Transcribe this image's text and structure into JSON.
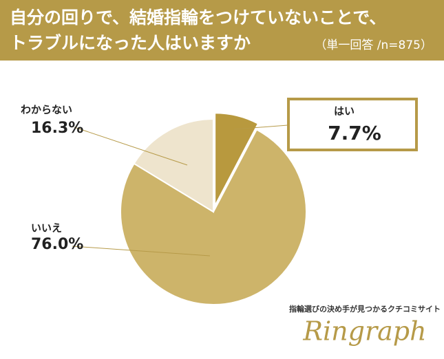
{
  "chart_data": {
    "type": "pie",
    "title": [
      "自分の回りで、結婚指輪をつけていないことで、",
      "トラブルになった人はいますか"
    ],
    "subtitle": "（単一回答 /n=875）",
    "categories": [
      "はい",
      "いいえ",
      "わからない"
    ],
    "values": [
      7.7,
      76.0,
      16.3
    ],
    "value_labels": [
      "7.7%",
      "76.0%",
      "16.3%"
    ],
    "colors": [
      "#b8993e",
      "#cdb46a",
      "#eee4cd"
    ]
  },
  "brand": {
    "tagline": "指輪選びの決め手が見つかるクチコミサイト",
    "logo": "Ringraph"
  }
}
